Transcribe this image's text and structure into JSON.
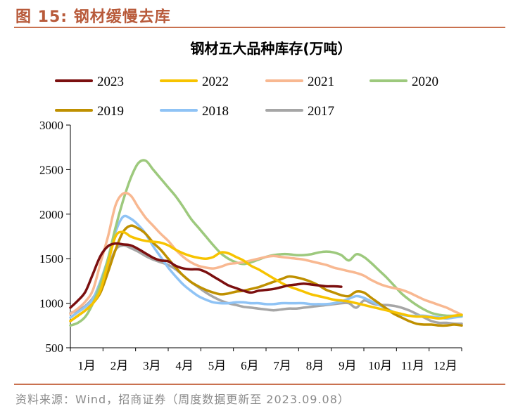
{
  "figure_title": "图 15:  钢材缓慢去库",
  "source": "资料来源：Wind，招商证券（周度数据更新至 2023.09.08）",
  "chart_data": {
    "type": "line",
    "title": "钢材五大品种库存(万吨）",
    "xlabel": "",
    "ylabel": "",
    "ylim": [
      500,
      3000
    ],
    "yticks": [
      500,
      1000,
      1500,
      2000,
      2500,
      3000
    ],
    "x_unit": "week",
    "xlim": [
      1,
      53
    ],
    "categories": [
      "1月",
      "2月",
      "3月",
      "4月",
      "5月",
      "6月",
      "7月",
      "8月",
      "9月",
      "10月",
      "11月",
      "12月"
    ],
    "grid": false,
    "legend": "top",
    "series": [
      {
        "name": "2023",
        "color": "#7b0f0f",
        "x": [
          1,
          2,
          3,
          4,
          5,
          6,
          7,
          8,
          9,
          10,
          11,
          12,
          13,
          14,
          15,
          16,
          17,
          18,
          19,
          20,
          21,
          22,
          23,
          24,
          25,
          26,
          27,
          28,
          29,
          30,
          31,
          32,
          33,
          34,
          35,
          36,
          37
        ],
        "values": [
          950,
          1030,
          1130,
          1330,
          1530,
          1640,
          1670,
          1660,
          1650,
          1610,
          1560,
          1510,
          1480,
          1470,
          1420,
          1390,
          1380,
          1380,
          1350,
          1300,
          1250,
          1200,
          1170,
          1140,
          1120,
          1140,
          1150,
          1160,
          1180,
          1200,
          1210,
          1220,
          1210,
          1200,
          1190,
          1190,
          1185
        ]
      },
      {
        "name": "2022",
        "color": "#f7c300",
        "x": [
          1,
          2,
          3,
          4,
          5,
          6,
          7,
          8,
          9,
          10,
          11,
          12,
          13,
          14,
          15,
          16,
          17,
          18,
          19,
          20,
          21,
          22,
          23,
          24,
          25,
          26,
          27,
          28,
          29,
          30,
          31,
          32,
          33,
          34,
          35,
          36,
          37,
          38,
          39,
          40,
          41,
          42,
          43,
          44,
          45,
          46,
          47,
          48,
          49,
          50,
          51,
          52,
          53
        ],
        "values": [
          800,
          860,
          920,
          1000,
          1150,
          1450,
          1750,
          1800,
          1750,
          1720,
          1700,
          1690,
          1680,
          1650,
          1600,
          1560,
          1530,
          1510,
          1500,
          1520,
          1570,
          1560,
          1520,
          1480,
          1420,
          1380,
          1330,
          1280,
          1230,
          1190,
          1160,
          1130,
          1100,
          1080,
          1060,
          1040,
          1030,
          1020,
          1000,
          980,
          960,
          940,
          920,
          900,
          880,
          860,
          850,
          850,
          840,
          830,
          840,
          860,
          870
        ]
      },
      {
        "name": "2021",
        "color": "#f8b891",
        "x": [
          1,
          2,
          3,
          4,
          5,
          6,
          7,
          8,
          9,
          10,
          11,
          12,
          13,
          14,
          15,
          16,
          17,
          18,
          19,
          20,
          21,
          22,
          23,
          24,
          25,
          26,
          27,
          28,
          29,
          30,
          31,
          32,
          33,
          34,
          35,
          36,
          37,
          38,
          39,
          40,
          41,
          42,
          43,
          44,
          45,
          46,
          47,
          48,
          49,
          50,
          51,
          52,
          53
        ],
        "values": [
          880,
          940,
          1020,
          1150,
          1450,
          1750,
          2100,
          2230,
          2210,
          2080,
          1960,
          1870,
          1780,
          1700,
          1600,
          1520,
          1460,
          1420,
          1400,
          1390,
          1410,
          1440,
          1450,
          1460,
          1480,
          1500,
          1520,
          1530,
          1520,
          1510,
          1500,
          1490,
          1470,
          1450,
          1430,
          1400,
          1380,
          1360,
          1340,
          1310,
          1260,
          1220,
          1190,
          1170,
          1150,
          1120,
          1080,
          1040,
          1010,
          980,
          950,
          910,
          870
        ]
      },
      {
        "name": "2020",
        "color": "#9dc97d",
        "x": [
          1,
          2,
          3,
          4,
          5,
          6,
          7,
          8,
          9,
          10,
          11,
          12,
          13,
          14,
          15,
          16,
          17,
          18,
          19,
          20,
          21,
          22,
          23,
          24,
          25,
          26,
          27,
          28,
          29,
          30,
          31,
          32,
          33,
          34,
          35,
          36,
          37,
          38,
          39,
          40,
          41,
          42,
          43,
          44,
          45,
          46,
          47,
          48,
          49,
          50,
          51,
          52,
          53
        ],
        "values": [
          750,
          780,
          850,
          1000,
          1220,
          1500,
          1850,
          2150,
          2400,
          2570,
          2600,
          2500,
          2400,
          2300,
          2200,
          2080,
          1950,
          1850,
          1750,
          1650,
          1560,
          1500,
          1460,
          1440,
          1460,
          1490,
          1520,
          1540,
          1550,
          1550,
          1540,
          1540,
          1550,
          1570,
          1580,
          1570,
          1540,
          1480,
          1550,
          1520,
          1450,
          1370,
          1290,
          1200,
          1110,
          1040,
          980,
          930,
          890,
          870,
          860,
          860,
          860
        ]
      },
      {
        "name": "2019",
        "color": "#bf9000",
        "x": [
          1,
          2,
          3,
          4,
          5,
          6,
          7,
          8,
          9,
          10,
          11,
          12,
          13,
          14,
          15,
          16,
          17,
          18,
          19,
          20,
          21,
          22,
          23,
          24,
          25,
          26,
          27,
          28,
          29,
          30,
          31,
          32,
          33,
          34,
          35,
          36,
          37,
          38,
          39,
          40,
          41,
          42,
          43,
          44,
          45,
          46,
          47,
          48,
          49,
          50,
          51,
          52,
          53
        ],
        "values": [
          800,
          860,
          920,
          1000,
          1120,
          1350,
          1600,
          1800,
          1870,
          1840,
          1780,
          1680,
          1600,
          1500,
          1400,
          1310,
          1240,
          1190,
          1150,
          1120,
          1100,
          1110,
          1130,
          1140,
          1160,
          1180,
          1210,
          1240,
          1270,
          1300,
          1290,
          1270,
          1240,
          1200,
          1150,
          1120,
          1090,
          1080,
          1130,
          1120,
          1060,
          1000,
          940,
          880,
          840,
          800,
          770,
          760,
          760,
          750,
          750,
          760,
          750
        ]
      },
      {
        "name": "2018",
        "color": "#8fc3f5",
        "x": [
          1,
          2,
          3,
          4,
          5,
          6,
          7,
          8,
          9,
          10,
          11,
          12,
          13,
          14,
          15,
          16,
          17,
          18,
          19,
          20,
          21,
          22,
          23,
          24,
          25,
          26,
          27,
          28,
          29,
          30,
          31,
          32,
          33,
          34,
          35,
          36,
          37,
          38,
          39,
          40,
          41,
          42,
          43,
          44,
          45,
          46,
          47,
          48,
          49,
          50,
          51,
          52,
          53
        ],
        "values": [
          840,
          900,
          960,
          1050,
          1250,
          1500,
          1800,
          1970,
          1950,
          1880,
          1780,
          1640,
          1520,
          1400,
          1300,
          1210,
          1140,
          1080,
          1040,
          1010,
          1000,
          1000,
          1010,
          1010,
          1000,
          1000,
          990,
          990,
          1000,
          1000,
          1000,
          1000,
          990,
          990,
          990,
          1000,
          1020,
          1050,
          1080,
          1060,
          1020,
          980,
          940,
          900,
          870,
          860,
          860,
          860,
          850,
          840,
          830,
          840,
          850
        ]
      },
      {
        "name": "2017",
        "color": "#a6a6a6",
        "x": [
          1,
          2,
          3,
          4,
          5,
          6,
          7,
          8,
          9,
          10,
          11,
          12,
          13,
          14,
          15,
          16,
          17,
          18,
          19,
          20,
          21,
          22,
          23,
          24,
          25,
          26,
          27,
          28,
          29,
          30,
          31,
          32,
          33,
          34,
          35,
          36,
          37,
          38,
          39,
          40,
          41,
          42,
          43,
          44,
          45,
          46,
          47,
          48,
          49,
          50,
          51,
          52,
          53
        ],
        "values": [
          890,
          920,
          970,
          1060,
          1200,
          1400,
          1600,
          1650,
          1620,
          1580,
          1530,
          1490,
          1460,
          1430,
          1380,
          1310,
          1240,
          1180,
          1120,
          1070,
          1030,
          1000,
          980,
          960,
          950,
          940,
          930,
          920,
          930,
          940,
          940,
          950,
          960,
          970,
          980,
          990,
          1000,
          1000,
          950,
          1030,
          1000,
          980,
          980,
          970,
          950,
          920,
          880,
          840,
          800,
          780,
          780,
          770,
          770
        ]
      }
    ]
  }
}
